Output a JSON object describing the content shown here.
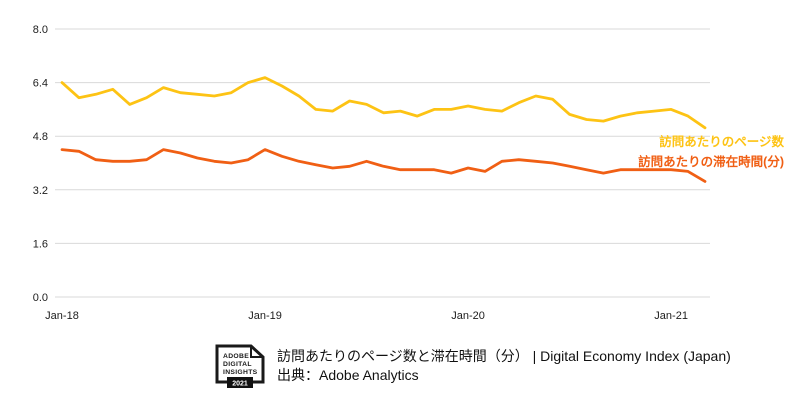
{
  "chart_data": {
    "type": "line",
    "title": "訪問あたりのページ数と滞在時間（分）",
    "x": [
      "Jan-18",
      "Feb-18",
      "Mar-18",
      "Apr-18",
      "May-18",
      "Jun-18",
      "Jul-18",
      "Aug-18",
      "Sep-18",
      "Oct-18",
      "Nov-18",
      "Dec-18",
      "Jan-19",
      "Feb-19",
      "Mar-19",
      "Apr-19",
      "May-19",
      "Jun-19",
      "Jul-19",
      "Aug-19",
      "Sep-19",
      "Oct-19",
      "Nov-19",
      "Dec-19",
      "Jan-20",
      "Feb-20",
      "Mar-20",
      "Apr-20",
      "May-20",
      "Jun-20",
      "Jul-20",
      "Aug-20",
      "Sep-20",
      "Oct-20",
      "Nov-20",
      "Dec-20",
      "Jan-21",
      "Feb-21",
      "Mar-21"
    ],
    "series": [
      {
        "name": "訪問あたりのページ数",
        "color": "#FDC314",
        "values": [
          6.4,
          5.95,
          6.05,
          6.2,
          5.75,
          5.95,
          6.25,
          6.1,
          6.05,
          6.0,
          6.1,
          6.4,
          6.55,
          6.3,
          6.0,
          5.6,
          5.55,
          5.85,
          5.75,
          5.5,
          5.55,
          5.4,
          5.6,
          5.6,
          5.7,
          5.6,
          5.55,
          5.8,
          6.0,
          5.9,
          5.45,
          5.3,
          5.25,
          5.4,
          5.5,
          5.55,
          5.6,
          5.4,
          5.05
        ]
      },
      {
        "name": "訪問あたりの滞在時間(分)",
        "color": "#F05F14",
        "values": [
          4.4,
          4.35,
          4.1,
          4.05,
          4.05,
          4.1,
          4.4,
          4.3,
          4.15,
          4.05,
          4.0,
          4.1,
          4.4,
          4.2,
          4.05,
          3.95,
          3.85,
          3.9,
          4.05,
          3.9,
          3.8,
          3.8,
          3.8,
          3.7,
          3.85,
          3.75,
          4.05,
          4.1,
          4.05,
          4.0,
          3.9,
          3.8,
          3.7,
          3.8,
          3.8,
          3.8,
          3.8,
          3.75,
          3.45
        ]
      }
    ],
    "ylim": [
      0,
      8
    ],
    "yticks": [
      "0.0",
      "1.6",
      "3.2",
      "4.8",
      "6.4",
      "8.0"
    ],
    "xticks": [
      "Jan-18",
      "Jan-19",
      "Jan-20",
      "Jan-21"
    ],
    "grid": true,
    "legend_position": "right-middle"
  },
  "legend": {
    "pages_label": "訪問あたりのページ数",
    "time_label": "訪問あたりの滞在時間(分)"
  },
  "footer": {
    "logo": {
      "line1": "ADOBE",
      "line2": "DIGITAL",
      "line3": "INSIGHTS",
      "year": "2021"
    },
    "caption_line1": "訪問あたりのページ数と滞在時間（分） | Digital Economy Index (Japan)",
    "caption_line2": "出典：Adobe Analytics"
  },
  "colors": {
    "pages": "#FDC314",
    "time": "#F05F14",
    "grid": "#D9D9D9",
    "text": "#1D1D1D"
  }
}
